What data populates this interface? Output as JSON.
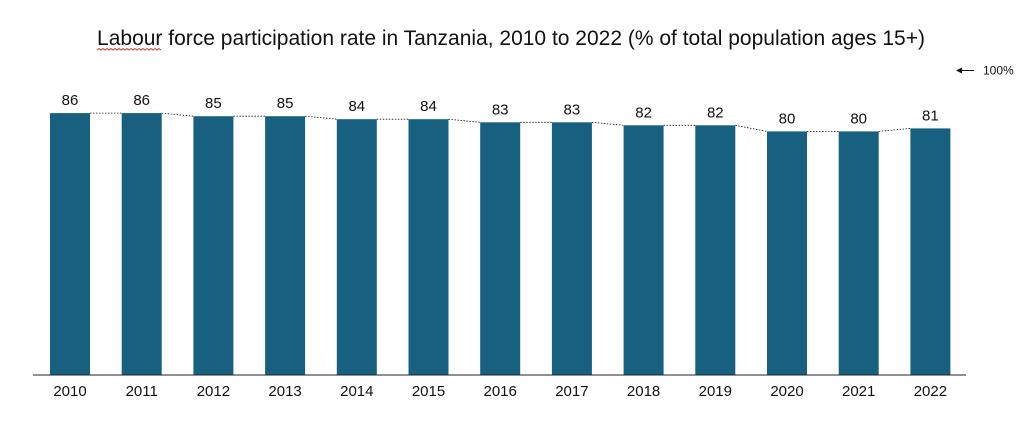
{
  "chart_data": {
    "type": "bar",
    "title": "Labour force participation rate in Tanzania, 2010 to 2022 (% of total population ages 15+)",
    "categories": [
      "2010",
      "2011",
      "2012",
      "2013",
      "2014",
      "2015",
      "2016",
      "2017",
      "2018",
      "2019",
      "2020",
      "2021",
      "2022"
    ],
    "values": [
      86,
      86,
      85,
      85,
      84,
      84,
      83,
      83,
      82,
      82,
      80,
      80,
      81
    ],
    "data_labels": [
      "86",
      "86",
      "85",
      "85",
      "84",
      "84",
      "83",
      "83",
      "82",
      "82",
      "80",
      "80",
      "81"
    ],
    "ylim": [
      0,
      100
    ],
    "reference_label": "100%",
    "bar_color": "#17607f",
    "connector_style": "dotted",
    "grid": false,
    "legend": "none"
  }
}
